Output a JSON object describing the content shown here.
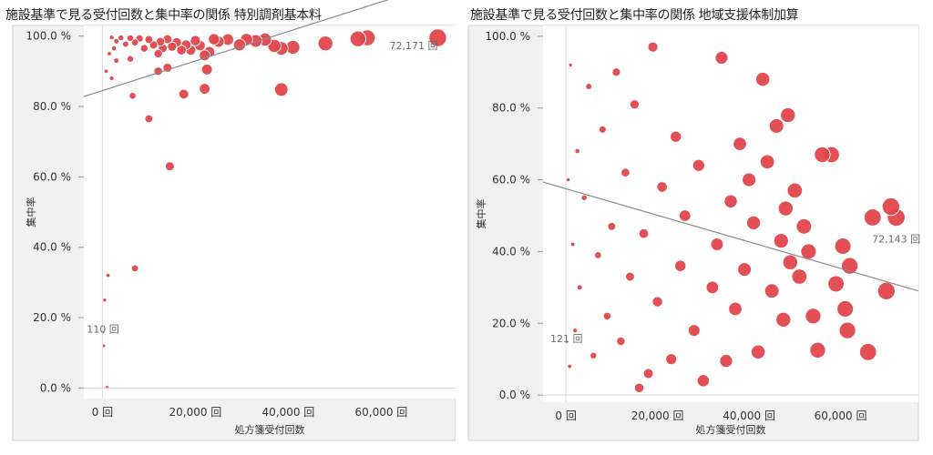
{
  "chart_data": [
    {
      "type": "scatter",
      "title": "施設基準で見る受付回数と集中率の関係  特別調剤基本料",
      "xlabel": "処方箋受付回数",
      "ylabel": "集中率",
      "xlim": [
        -4000,
        76000
      ],
      "ylim": [
        -3,
        103
      ],
      "x_ticks": [
        {
          "value": 0,
          "label": "0 回"
        },
        {
          "value": 20000,
          "label": "20,000 回"
        },
        {
          "value": 40000,
          "label": "40,000 回"
        },
        {
          "value": 60000,
          "label": "60,000 回"
        }
      ],
      "y_ticks": [
        {
          "value": 0,
          "label": "0.0 %"
        },
        {
          "value": 20,
          "label": "20.0 %"
        },
        {
          "value": 40,
          "label": "40.0 %"
        },
        {
          "value": 60,
          "label": "60.0 %"
        },
        {
          "value": 80,
          "label": "80.0 %"
        },
        {
          "value": 100,
          "label": "100.0 %"
        }
      ],
      "trend": {
        "slope": 0.00042,
        "intercept": 84.5
      },
      "annotations": [
        {
          "text": "72,171 回",
          "x": 72171,
          "y": 96.3,
          "anchor": "end"
        },
        {
          "text": "110 回",
          "x": 110,
          "y": 15.8,
          "anchor": "middle"
        }
      ],
      "points": [
        {
          "x": 72171,
          "y": 99.5
        },
        {
          "x": 57000,
          "y": 99.5
        },
        {
          "x": 55000,
          "y": 99.2
        },
        {
          "x": 48000,
          "y": 97.9
        },
        {
          "x": 41000,
          "y": 96.8
        },
        {
          "x": 38500,
          "y": 96.5
        },
        {
          "x": 37000,
          "y": 97.2
        },
        {
          "x": 35000,
          "y": 99.0
        },
        {
          "x": 33000,
          "y": 98.6
        },
        {
          "x": 31000,
          "y": 99.0
        },
        {
          "x": 29500,
          "y": 97.5
        },
        {
          "x": 27000,
          "y": 99.0
        },
        {
          "x": 25000,
          "y": 98.4
        },
        {
          "x": 24000,
          "y": 99.1
        },
        {
          "x": 23000,
          "y": 95.5
        },
        {
          "x": 22500,
          "y": 90.5
        },
        {
          "x": 22000,
          "y": 94.5
        },
        {
          "x": 21000,
          "y": 97.3
        },
        {
          "x": 20000,
          "y": 98.7
        },
        {
          "x": 19000,
          "y": 96.0
        },
        {
          "x": 18000,
          "y": 97.5
        },
        {
          "x": 17000,
          "y": 96.0
        },
        {
          "x": 16000,
          "y": 98.2
        },
        {
          "x": 15000,
          "y": 97.0
        },
        {
          "x": 14000,
          "y": 99.1
        },
        {
          "x": 13000,
          "y": 96.5
        },
        {
          "x": 12500,
          "y": 98.4
        },
        {
          "x": 12000,
          "y": 95.0
        },
        {
          "x": 11000,
          "y": 97.5
        },
        {
          "x": 10000,
          "y": 99.0
        },
        {
          "x": 9000,
          "y": 96.5
        },
        {
          "x": 8000,
          "y": 99.3
        },
        {
          "x": 7000,
          "y": 98.2
        },
        {
          "x": 6000,
          "y": 99.4
        },
        {
          "x": 5000,
          "y": 97.7
        },
        {
          "x": 4000,
          "y": 99.5
        },
        {
          "x": 3000,
          "y": 98.5
        },
        {
          "x": 2500,
          "y": 96.5
        },
        {
          "x": 2000,
          "y": 99.6
        },
        {
          "x": 1500,
          "y": 95.0
        },
        {
          "x": 38500,
          "y": 84.8
        },
        {
          "x": 22000,
          "y": 85.0
        },
        {
          "x": 17500,
          "y": 83.5
        },
        {
          "x": 14000,
          "y": 91.0
        },
        {
          "x": 12000,
          "y": 90.0
        },
        {
          "x": 10000,
          "y": 76.5
        },
        {
          "x": 6500,
          "y": 83.0
        },
        {
          "x": 14500,
          "y": 63.0
        },
        {
          "x": 7000,
          "y": 34.0
        },
        {
          "x": 1200,
          "y": 32.0
        },
        {
          "x": 110,
          "y": 15.8
        },
        {
          "x": 800,
          "y": 90.0
        },
        {
          "x": 2000,
          "y": 88.0
        },
        {
          "x": 6000,
          "y": 93.5
        },
        {
          "x": 1000,
          "y": 0.2
        },
        {
          "x": 500,
          "y": 25.0
        },
        {
          "x": 300,
          "y": 12.0
        },
        {
          "x": 3000,
          "y": 93.0
        }
      ]
    },
    {
      "type": "scatter",
      "title": "施設基準で見る受付回数と集中率の関係  地域支援体制加算",
      "xlabel": "処方箋受付回数",
      "ylabel": "集中率",
      "xlim": [
        -5000,
        77000
      ],
      "ylim": [
        -2,
        103
      ],
      "x_ticks": [
        {
          "value": 0,
          "label": "0 回"
        },
        {
          "value": 20000,
          "label": "20,000 回"
        },
        {
          "value": 40000,
          "label": "40,000 回"
        },
        {
          "value": 60000,
          "label": "60,000 回"
        }
      ],
      "y_ticks": [
        {
          "value": 0,
          "label": "0.0 %"
        },
        {
          "value": 20,
          "label": "20.0 %"
        },
        {
          "value": 40,
          "label": "40.0 %"
        },
        {
          "value": 60,
          "label": "60.0 %"
        },
        {
          "value": 80,
          "label": "80.0 %"
        },
        {
          "value": 100,
          "label": "100.0 %"
        }
      ],
      "trend": {
        "slope": -0.00037,
        "intercept": 57.5
      },
      "annotations": [
        {
          "text": "72,143 回",
          "x": 72143,
          "y": 42.5,
          "anchor": "middle"
        },
        {
          "text": "121 回",
          "x": 121,
          "y": 14.8,
          "anchor": "middle"
        }
      ],
      "points": [
        {
          "x": 72143,
          "y": 49.5
        },
        {
          "x": 71000,
          "y": 52.5
        },
        {
          "x": 70000,
          "y": 29.0
        },
        {
          "x": 67000,
          "y": 49.5
        },
        {
          "x": 66000,
          "y": 12.0
        },
        {
          "x": 62000,
          "y": 36.0
        },
        {
          "x": 61500,
          "y": 18.0
        },
        {
          "x": 61000,
          "y": 24.0
        },
        {
          "x": 60500,
          "y": 41.5
        },
        {
          "x": 59000,
          "y": 31.0
        },
        {
          "x": 58000,
          "y": 67.0
        },
        {
          "x": 56000,
          "y": 67.0
        },
        {
          "x": 55000,
          "y": 12.5
        },
        {
          "x": 54000,
          "y": 22.0
        },
        {
          "x": 53000,
          "y": 40.0
        },
        {
          "x": 52000,
          "y": 47.0
        },
        {
          "x": 51000,
          "y": 33.0
        },
        {
          "x": 50000,
          "y": 57.0
        },
        {
          "x": 49000,
          "y": 37.0
        },
        {
          "x": 48500,
          "y": 78.0
        },
        {
          "x": 48000,
          "y": 52.0
        },
        {
          "x": 47500,
          "y": 21.0
        },
        {
          "x": 47000,
          "y": 43.0
        },
        {
          "x": 46000,
          "y": 75.0
        },
        {
          "x": 45000,
          "y": 29.0
        },
        {
          "x": 44000,
          "y": 65.0
        },
        {
          "x": 43000,
          "y": 88.0
        },
        {
          "x": 42000,
          "y": 12.0
        },
        {
          "x": 41000,
          "y": 48.0
        },
        {
          "x": 40000,
          "y": 60.0
        },
        {
          "x": 39000,
          "y": 35.0
        },
        {
          "x": 38000,
          "y": 70.0
        },
        {
          "x": 37000,
          "y": 24.0
        },
        {
          "x": 36000,
          "y": 54.0
        },
        {
          "x": 35000,
          "y": 9.5
        },
        {
          "x": 34000,
          "y": 94.0
        },
        {
          "x": 33000,
          "y": 42.0
        },
        {
          "x": 32000,
          "y": 30.0
        },
        {
          "x": 30000,
          "y": 4.0
        },
        {
          "x": 29000,
          "y": 64.0
        },
        {
          "x": 28000,
          "y": 18.0
        },
        {
          "x": 26000,
          "y": 50.0
        },
        {
          "x": 25000,
          "y": 36.0
        },
        {
          "x": 24000,
          "y": 72.0
        },
        {
          "x": 23000,
          "y": 10.0
        },
        {
          "x": 21000,
          "y": 58.0
        },
        {
          "x": 20000,
          "y": 26.0
        },
        {
          "x": 19000,
          "y": 97.0
        },
        {
          "x": 18000,
          "y": 6.0
        },
        {
          "x": 17000,
          "y": 45.0
        },
        {
          "x": 16000,
          "y": 2.0
        },
        {
          "x": 15000,
          "y": 81.0
        },
        {
          "x": 14000,
          "y": 33.0
        },
        {
          "x": 13000,
          "y": 62.0
        },
        {
          "x": 12000,
          "y": 15.0
        },
        {
          "x": 11000,
          "y": 90.0
        },
        {
          "x": 10000,
          "y": 47.0
        },
        {
          "x": 9000,
          "y": 22.0
        },
        {
          "x": 8000,
          "y": 74.0
        },
        {
          "x": 7000,
          "y": 39.0
        },
        {
          "x": 6000,
          "y": 11.0
        },
        {
          "x": 5000,
          "y": 86.0
        },
        {
          "x": 4000,
          "y": 55.0
        },
        {
          "x": 3000,
          "y": 30.0
        },
        {
          "x": 2500,
          "y": 68.0
        },
        {
          "x": 2000,
          "y": 18.0
        },
        {
          "x": 1500,
          "y": 42.0
        },
        {
          "x": 1000,
          "y": 92.0
        },
        {
          "x": 800,
          "y": 8.0
        },
        {
          "x": 500,
          "y": 60.0
        },
        {
          "x": 121,
          "y": 14.8
        }
      ]
    }
  ]
}
